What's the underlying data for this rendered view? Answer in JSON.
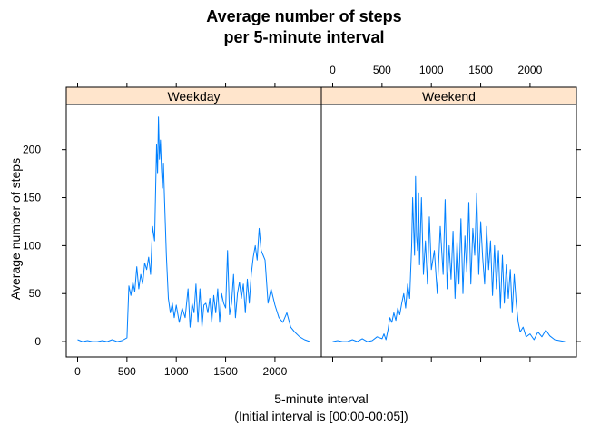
{
  "chart_data": {
    "type": "line",
    "title_line1": "Average number of steps",
    "title_line2": "per 5-minute interval",
    "xlabel_line1": "5-minute interval",
    "xlabel_line2": "(Initial interval is [00:00-00:05])",
    "ylabel": "Average number of steps",
    "xlim": [
      -115,
      2470
    ],
    "ylim": [
      -16,
      247
    ],
    "x_ticks": [
      0,
      500,
      1000,
      1500,
      2000
    ],
    "y_ticks": [
      0,
      50,
      100,
      150,
      200
    ],
    "x_tick_labels": [
      "0",
      "500",
      "1000",
      "1500",
      "2000"
    ],
    "y_tick_labels": [
      "0",
      "50",
      "100",
      "150",
      "200"
    ],
    "grid": false,
    "line_color": "#0080ff",
    "strip_color": "#ffe5cc",
    "panels": [
      {
        "name": "Weekday",
        "x": [
          0,
          50,
          100,
          150,
          200,
          250,
          300,
          350,
          400,
          450,
          500,
          520,
          540,
          560,
          580,
          600,
          620,
          640,
          660,
          680,
          700,
          720,
          740,
          760,
          780,
          800,
          810,
          820,
          830,
          840,
          850,
          860,
          870,
          880,
          900,
          920,
          940,
          960,
          980,
          1000,
          1030,
          1060,
          1090,
          1120,
          1140,
          1160,
          1180,
          1200,
          1220,
          1240,
          1260,
          1280,
          1300,
          1320,
          1340,
          1360,
          1380,
          1400,
          1420,
          1440,
          1460,
          1480,
          1500,
          1520,
          1540,
          1560,
          1580,
          1600,
          1620,
          1640,
          1660,
          1680,
          1700,
          1720,
          1740,
          1760,
          1780,
          1800,
          1820,
          1840,
          1860,
          1880,
          1900,
          1930,
          1960,
          2000,
          2040,
          2080,
          2120,
          2160,
          2200,
          2250,
          2300,
          2355
        ],
        "y": [
          2,
          0,
          1,
          0,
          0,
          1,
          0,
          2,
          0,
          1,
          4,
          58,
          48,
          62,
          52,
          78,
          55,
          70,
          60,
          82,
          75,
          88,
          70,
          120,
          105,
          205,
          175,
          234,
          190,
          210,
          180,
          160,
          185,
          150,
          90,
          45,
          30,
          40,
          25,
          38,
          20,
          35,
          25,
          55,
          15,
          40,
          30,
          60,
          20,
          55,
          15,
          38,
          40,
          30,
          45,
          20,
          48,
          30,
          55,
          20,
          50,
          40,
          35,
          95,
          28,
          40,
          70,
          25,
          50,
          62,
          45,
          60,
          30,
          65,
          40,
          70,
          88,
          100,
          85,
          118,
          95,
          90,
          85,
          40,
          55,
          38,
          25,
          20,
          30,
          15,
          10,
          5,
          2,
          0
        ]
      },
      {
        "name": "Weekend",
        "x": [
          0,
          50,
          100,
          150,
          200,
          250,
          300,
          350,
          400,
          450,
          500,
          520,
          540,
          560,
          580,
          600,
          620,
          640,
          660,
          680,
          700,
          720,
          740,
          760,
          780,
          800,
          810,
          820,
          830,
          840,
          850,
          860,
          870,
          880,
          900,
          920,
          940,
          960,
          980,
          1000,
          1030,
          1060,
          1090,
          1120,
          1140,
          1160,
          1180,
          1200,
          1220,
          1240,
          1260,
          1280,
          1300,
          1320,
          1340,
          1360,
          1380,
          1400,
          1420,
          1440,
          1460,
          1480,
          1500,
          1520,
          1540,
          1560,
          1580,
          1600,
          1620,
          1640,
          1660,
          1680,
          1700,
          1720,
          1740,
          1760,
          1780,
          1800,
          1820,
          1840,
          1860,
          1880,
          1900,
          1930,
          1960,
          2000,
          2040,
          2080,
          2120,
          2160,
          2200,
          2250,
          2300,
          2355
        ],
        "y": [
          0,
          1,
          0,
          0,
          2,
          0,
          3,
          0,
          1,
          5,
          3,
          8,
          2,
          12,
          25,
          20,
          30,
          22,
          35,
          28,
          40,
          50,
          35,
          60,
          45,
          100,
          150,
          120,
          90,
          172,
          110,
          95,
          155,
          80,
          150,
          70,
          105,
          60,
          130,
          75,
          95,
          50,
          120,
          70,
          148,
          55,
          100,
          65,
          115,
          45,
          105,
          60,
          128,
          50,
          110,
          72,
          145,
          60,
          118,
          90,
          155,
          70,
          125,
          88,
          60,
          120,
          75,
          105,
          48,
          100,
          55,
          95,
          35,
          90,
          40,
          80,
          45,
          75,
          30,
          70,
          40,
          20,
          10,
          15,
          5,
          8,
          2,
          10,
          5,
          12,
          6,
          2,
          1,
          0
        ]
      }
    ]
  }
}
